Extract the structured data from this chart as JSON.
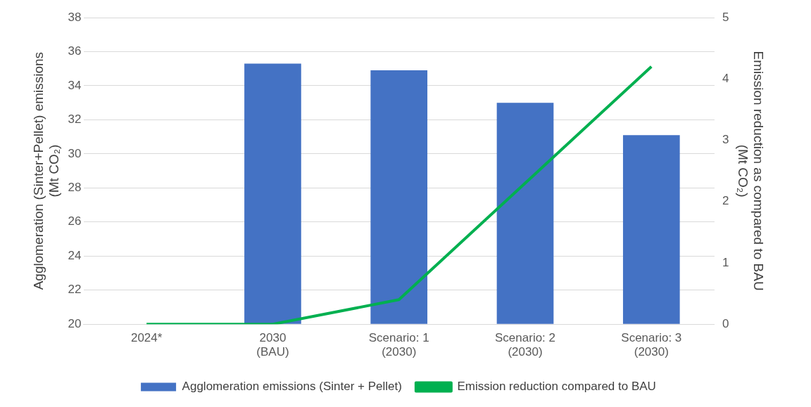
{
  "chart_data": {
    "type": "bar",
    "categories": [
      "2024*",
      "2030 (BAU)",
      "Scenario: 1 (2030)",
      "Scenario: 2 (2030)",
      "Scenario: 3 (2030)"
    ],
    "series": [
      {
        "name": "Agglomeration emissions (Sinter + Pellet)",
        "color": "#4472c4",
        "values": [
          null,
          35.3,
          34.9,
          33.0,
          31.1
        ]
      },
      {
        "name": "Emission reduction compared to BAU",
        "type": "line",
        "axis": "y2",
        "color": "#00b050",
        "values": [
          0,
          0,
          0.4,
          2.3,
          4.2
        ]
      }
    ],
    "ylabel": "Agglomeration (Sinter+Pellet) emissions (Mt CO₂)",
    "y2label": "Emission reduction as compared to BAU (Mt CO₂)",
    "ylim": [
      20,
      38
    ],
    "yticks": [
      20,
      22,
      24,
      26,
      28,
      30,
      32,
      34,
      36,
      38
    ],
    "y2lim": [
      0,
      5
    ],
    "y2ticks": [
      0,
      1,
      2,
      3,
      4,
      5
    ],
    "grid": "y",
    "legend": "bottom",
    "marker": "none"
  }
}
